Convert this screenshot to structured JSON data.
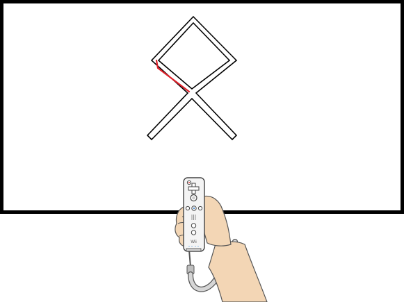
{
  "colors": {
    "frame": "#000000",
    "screen": "#ffffff",
    "track_outline": "#000000",
    "progress_trace": "#e0202a",
    "skin": "#f3d6b5",
    "skin_outline": "#555555",
    "remote_body": "#f4f4f4",
    "remote_outline": "#444444",
    "strap": "#bfbfbf"
  },
  "scene": {
    "shape": "x-diamond-track",
    "trace_progress": 0.18
  },
  "remote": {
    "brand_label": "Wii",
    "buttons": [
      "power-button",
      "dpad",
      "a-button",
      "minus-button",
      "home-button",
      "plus-button",
      "one-button",
      "two-button"
    ]
  }
}
